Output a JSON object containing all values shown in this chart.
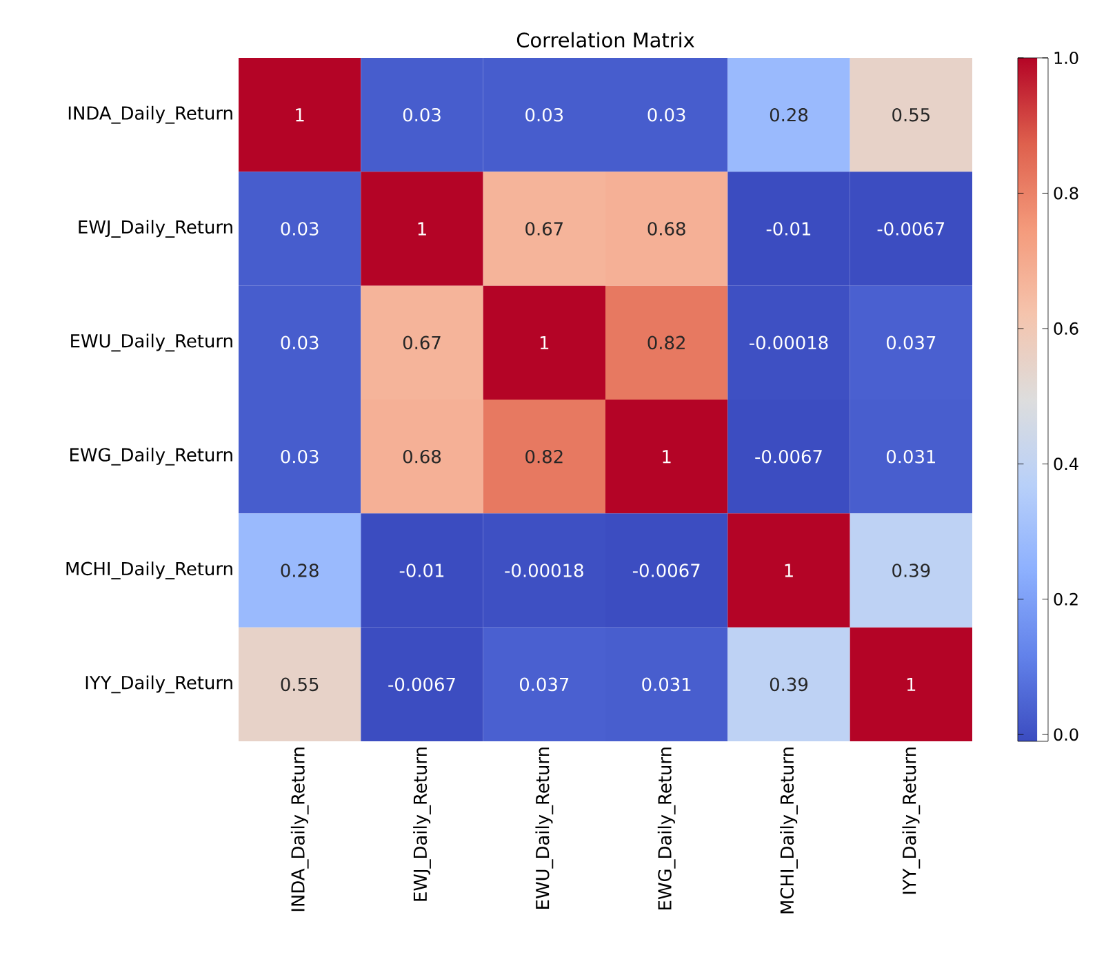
{
  "chart_data": {
    "type": "heatmap",
    "title": "Correlation Matrix",
    "categories": [
      "INDA_Daily_Return",
      "EWJ_Daily_Return",
      "EWU_Daily_Return",
      "EWG_Daily_Return",
      "MCHI_Daily_Return",
      "IYY_Daily_Return"
    ],
    "y_categories": [
      "INDA_Daily_Return",
      "EWJ_Daily_Return",
      "EWU_Daily_Return",
      "EWG_Daily_Return",
      "MCHI_Daily_Return",
      "IYY_Daily_Return"
    ],
    "cells": [
      [
        1,
        0.03,
        0.03,
        0.03,
        0.28,
        0.55
      ],
      [
        0.03,
        1,
        0.67,
        0.68,
        -0.01,
        -0.0067
      ],
      [
        0.03,
        0.67,
        1,
        0.82,
        -0.00018,
        0.037
      ],
      [
        0.03,
        0.68,
        0.82,
        1,
        -0.0067,
        0.031
      ],
      [
        0.28,
        -0.01,
        -0.00018,
        -0.0067,
        1,
        0.39
      ],
      [
        0.55,
        -0.0067,
        0.037,
        0.031,
        0.39,
        1
      ]
    ],
    "data_labels": true,
    "clim": [
      -0.01,
      1
    ],
    "cticks": [
      {
        "value": 0,
        "label": "0.0"
      },
      {
        "value": 0.2,
        "label": "0.2"
      },
      {
        "value": 0.4,
        "label": "0.4"
      },
      {
        "value": 0.6,
        "label": "0.6"
      },
      {
        "value": 0.8,
        "label": "0.8"
      },
      {
        "value": 1,
        "label": "1.0"
      }
    ]
  }
}
